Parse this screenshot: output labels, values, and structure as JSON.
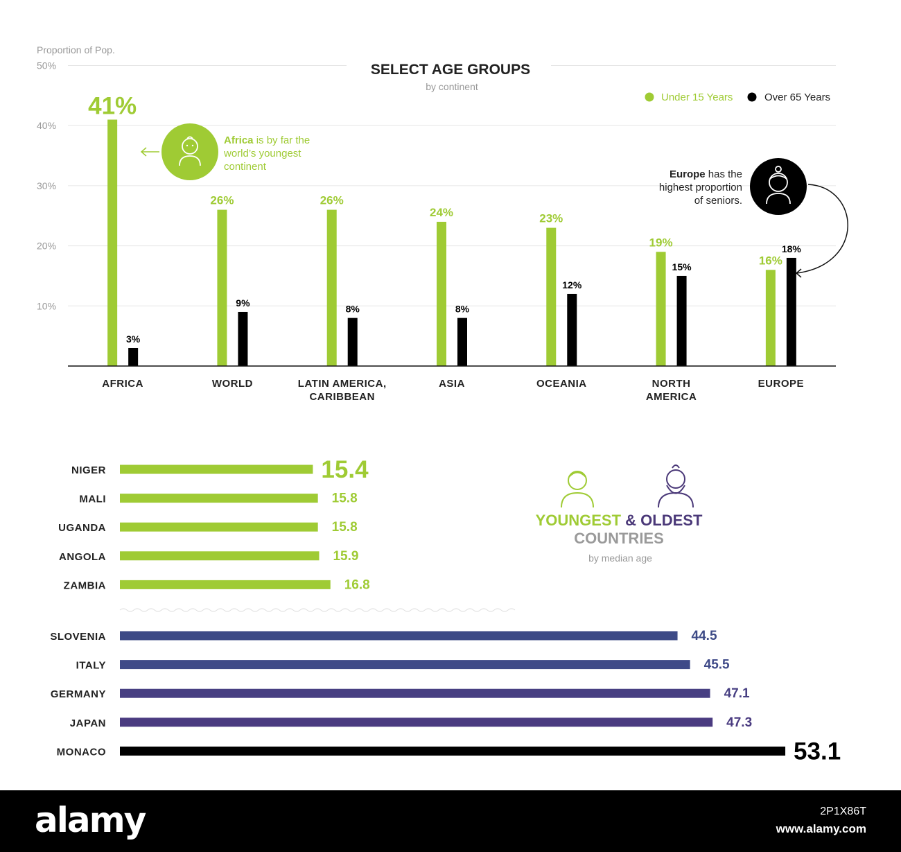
{
  "colors": {
    "green": "#9fcb34",
    "black": "#000000",
    "navy1": "#3d4a86",
    "navy2": "#3f4282",
    "purple": "#4a3878",
    "gray": "#9a9a9a",
    "grid": "#e6e6e6"
  },
  "chart_data": [
    {
      "type": "bar",
      "title": "SELECT AGE GROUPS",
      "subtitle": "by continent",
      "ylabel": "Proportion of Pop.",
      "ylim": [
        0,
        50
      ],
      "yticks": [
        "50%",
        "40%",
        "30%",
        "20%",
        "10%"
      ],
      "grid": true,
      "legend_position": "top-right",
      "categories": [
        "AFRICA",
        "WORLD",
        "LATIN AMERICA,\nCARIBBEAN",
        "ASIA",
        "OCEANIA",
        "NORTH\nAMERICA",
        "EUROPE"
      ],
      "series": [
        {
          "name": "Under 15 Years",
          "color": "#9fcb34",
          "values": [
            41,
            26,
            26,
            24,
            23,
            19,
            16
          ],
          "labels": [
            "41%",
            "26%",
            "26%",
            "24%",
            "23%",
            "19%",
            "16%"
          ]
        },
        {
          "name": "Over 65 Years",
          "color": "#000000",
          "values": [
            3,
            9,
            8,
            8,
            12,
            15,
            18
          ],
          "labels": [
            "3%",
            "9%",
            "8%",
            "8%",
            "12%",
            "15%",
            "18%"
          ]
        }
      ],
      "annotations": [
        {
          "icon": "baby-icon",
          "bold": "Africa",
          "text_lines": [
            " is by far the",
            "world’s youngest",
            "continent"
          ]
        },
        {
          "icon": "grandmother-icon",
          "bold": "Europe",
          "text_lines": [
            " has the",
            "highest proportion",
            "of seniors."
          ]
        }
      ]
    },
    {
      "type": "bar",
      "orientation": "horizontal",
      "title_parts": [
        "YOUNGEST",
        " & ",
        "OLDEST"
      ],
      "title_line2": "COUNTRIES",
      "subtitle": "by median age",
      "groups": [
        {
          "name": "youngest",
          "categories": [
            "NIGER",
            "MALI",
            "UGANDA",
            "ANGOLA",
            "ZAMBIA"
          ],
          "values": [
            15.4,
            15.8,
            15.8,
            15.9,
            16.8
          ],
          "labels": [
            "15.4",
            "15.8",
            "15.8",
            "15.9",
            "16.8"
          ],
          "colors": [
            "#9fcb34",
            "#9fcb34",
            "#9fcb34",
            "#9fcb34",
            "#9fcb34"
          ]
        },
        {
          "name": "oldest",
          "categories": [
            "SLOVENIA",
            "ITALY",
            "GERMANY",
            "JAPAN",
            "MONACO"
          ],
          "values": [
            44.5,
            45.5,
            47.1,
            47.3,
            53.1
          ],
          "labels": [
            "44.5",
            "45.5",
            "47.1",
            "47.3",
            "53.1"
          ],
          "colors": [
            "#3d4a86",
            "#3f4a88",
            "#473f82",
            "#4a3b80",
            "#000000"
          ]
        }
      ]
    }
  ],
  "footer": {
    "logo": "alamy",
    "image_id": "2P1X86T",
    "site": "www.alamy.com"
  }
}
